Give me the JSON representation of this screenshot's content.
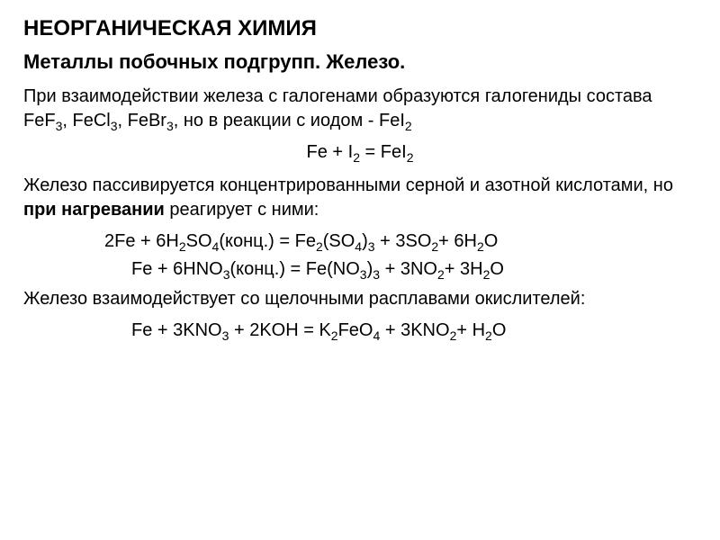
{
  "title": "НЕОРГАНИЧЕСКАЯ ХИМИЯ",
  "subtitle": "Металлы побочных подгрупп. Железо.",
  "para1_pre": "При взаимодействии железа с галогенами образуются галогениды состава FeF",
  "para1_f3a": "3",
  "para1_mid1": ", FeCl",
  "para1_f3b": "3",
  "para1_mid2": ",  FeBr",
  "para1_f3c": "3",
  "para1_mid3": ", но в реакции с иодом - FeI",
  "para1_f2": "2",
  "eq1_a": "Fe + I",
  "eq1_s1": "2",
  "eq1_b": " = FeI",
  "eq1_s2": "2",
  "para2_a": "Железо пассивируется концентрированными серной и азотной кислотами, но ",
  "para2_bold": "при нагревании",
  "para2_b": " реагирует с ними:",
  "eq2_a": "2Fe + 6H",
  "eq2_s1": "2",
  "eq2_b": "SO",
  "eq2_s2": "4",
  "eq2_c": "(конц.) = Fe",
  "eq2_s3": "2",
  "eq2_d": "(SO",
  "eq2_s4": "4",
  "eq2_e": ")",
  "eq2_s5": "3",
  "eq2_f": " + 3SO",
  "eq2_s6": "2",
  "eq2_g": "+ 6H",
  "eq2_s7": "2",
  "eq2_h": "O",
  "eq3_a": "Fe + 6HNO",
  "eq3_s1": "3",
  "eq3_b": "(конц.)  = Fe(NO",
  "eq3_s2": "3",
  "eq3_c": ")",
  "eq3_s3": "3",
  "eq3_d": " + 3NO",
  "eq3_s4": "2",
  "eq3_e": "+ 3H",
  "eq3_s5": "2",
  "eq3_f": "O",
  "para3": "Железо взаимодействует со щелочными расплавами окислителей:",
  "eq4_a": "Fe + 3KNO",
  "eq4_s1": "3",
  "eq4_b": " + 2KOH = K",
  "eq4_s2": "2",
  "eq4_c": "FeO",
  "eq4_s3": "4",
  "eq4_d": " + 3KNO",
  "eq4_s4": "2",
  "eq4_e": "+ H",
  "eq4_s5": "2",
  "eq4_f": "O",
  "colors": {
    "text": "#000000",
    "background": "#ffffff"
  },
  "typography": {
    "title_fontsize": 24,
    "subtitle_fontsize": 22,
    "body_fontsize": 20,
    "font_family": "Arial"
  }
}
